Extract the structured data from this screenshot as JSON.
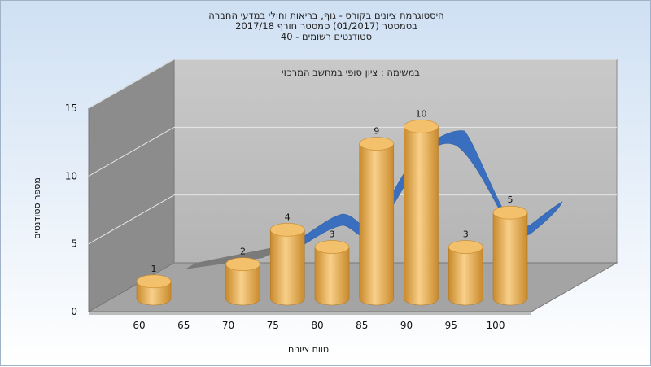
{
  "chart_data": {
    "type": "bar",
    "title_lines": [
      "היסטוגרמת ציונים בקורס - גוף, בריאות וחולי במדעי החברה",
      "בסמסטר  (01/2017)  סמסטר חורף 2017/18",
      "סטודנטים רשומים - 40"
    ],
    "subtitle": "במשימה : ציון סופי במחשב המרכזי",
    "xlabel": "טווח ציונים",
    "ylabel": "מספר סטודנטים",
    "categories": [
      "60",
      "65",
      "70",
      "75",
      "80",
      "85",
      "90",
      "95",
      "100"
    ],
    "y_ticks": [
      "0",
      "5",
      "10",
      "15"
    ],
    "ylim": [
      0,
      15
    ],
    "bars": [
      {
        "x": 60,
        "value": 1
      },
      {
        "x": 70,
        "value": 2
      },
      {
        "x": 75,
        "value": 4
      },
      {
        "x": 80,
        "value": 3
      },
      {
        "x": 85,
        "value": 9
      },
      {
        "x": 90,
        "value": 10
      },
      {
        "x": 95,
        "value": 3
      },
      {
        "x": 100,
        "value": 5
      }
    ],
    "grid": true,
    "colors": {
      "bar_light": "#f6c87a",
      "bar_dark": "#c98a2c",
      "curve": "#3a6fbf",
      "curve_shadow": "#7c7c7c",
      "back_wall": "#c0c0c0",
      "side_wall": "#8a8a8a",
      "floor": "#a3a3a3"
    }
  }
}
